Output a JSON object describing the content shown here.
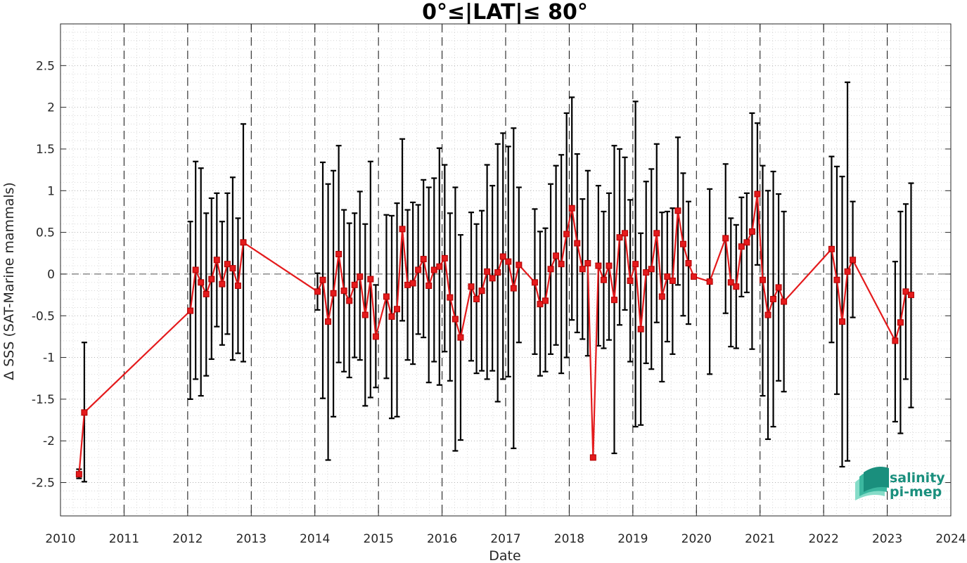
{
  "chart_data": {
    "type": "line",
    "title": "0°≤|LAT|≤ 80°",
    "xlabel": "Date",
    "ylabel": "Δ SSS (SAT-Marine mammals)",
    "xlim": [
      2010,
      2024
    ],
    "ylim": [
      -2.9,
      3.0
    ],
    "x_ticks": [
      "2010",
      "2011",
      "2012",
      "2013",
      "2014",
      "2015",
      "2016",
      "2017",
      "2018",
      "2019",
      "2020",
      "2021",
      "2022",
      "2023",
      "2024"
    ],
    "y_ticks": [
      "-2.5",
      "-2",
      "-1.5",
      "-1",
      "-0.5",
      "0",
      "0.5",
      "1",
      "1.5",
      "2",
      "2.5"
    ],
    "grid": "minor dotted",
    "reference_line_y": 0,
    "series": [
      {
        "color": "#e41a1c",
        "marker": "square",
        "errorbar_color": "#000000",
        "points": [
          {
            "x": "2010-04",
            "y": -2.4,
            "low": -2.45,
            "high": -2.34
          },
          {
            "x": "2010-05",
            "y": -1.66,
            "low": -2.49,
            "high": -0.82
          },
          {
            "x": "2012-01",
            "y": -0.44,
            "low": -1.5,
            "high": 0.63
          },
          {
            "x": "2012-02",
            "y": 0.05,
            "low": -1.26,
            "high": 1.35
          },
          {
            "x": "2012-03",
            "y": -0.1,
            "low": -1.46,
            "high": 1.27
          },
          {
            "x": "2012-04",
            "y": -0.24,
            "low": -1.22,
            "high": 0.73
          },
          {
            "x": "2012-05",
            "y": -0.06,
            "low": -1.02,
            "high": 0.91
          },
          {
            "x": "2012-06",
            "y": 0.17,
            "low": -0.63,
            "high": 0.97
          },
          {
            "x": "2012-07",
            "y": -0.12,
            "low": -0.85,
            "high": 0.63
          },
          {
            "x": "2012-08",
            "y": 0.12,
            "low": -0.72,
            "high": 0.97
          },
          {
            "x": "2012-09",
            "y": 0.07,
            "low": -1.03,
            "high": 1.16
          },
          {
            "x": "2012-10",
            "y": -0.14,
            "low": -0.95,
            "high": 0.67
          },
          {
            "x": "2012-11",
            "y": 0.38,
            "low": -1.05,
            "high": 1.8
          },
          {
            "x": "2014-01",
            "y": -0.21,
            "low": -0.43,
            "high": 0.01
          },
          {
            "x": "2014-02",
            "y": -0.07,
            "low": -1.49,
            "high": 1.34
          },
          {
            "x": "2014-03",
            "y": -0.57,
            "low": -2.23,
            "high": 1.08
          },
          {
            "x": "2014-04",
            "y": -0.23,
            "low": -1.71,
            "high": 1.24
          },
          {
            "x": "2014-05",
            "y": 0.24,
            "low": -1.06,
            "high": 1.54
          },
          {
            "x": "2014-06",
            "y": -0.2,
            "low": -1.17,
            "high": 0.77
          },
          {
            "x": "2014-07",
            "y": -0.32,
            "low": -1.24,
            "high": 0.61
          },
          {
            "x": "2014-08",
            "y": -0.13,
            "low": -1.0,
            "high": 0.73
          },
          {
            "x": "2014-09",
            "y": -0.03,
            "low": -1.03,
            "high": 0.99
          },
          {
            "x": "2014-10",
            "y": -0.49,
            "low": -1.58,
            "high": 0.6
          },
          {
            "x": "2014-11",
            "y": -0.06,
            "low": -1.48,
            "high": 1.35
          },
          {
            "x": "2014-12",
            "y": -0.75,
            "low": -1.36,
            "high": -0.13
          },
          {
            "x": "2015-02",
            "y": -0.27,
            "low": -1.25,
            "high": 0.71
          },
          {
            "x": "2015-03",
            "y": -0.51,
            "low": -1.73,
            "high": 0.7
          },
          {
            "x": "2015-04",
            "y": -0.42,
            "low": -1.71,
            "high": 0.85
          },
          {
            "x": "2015-05",
            "y": 0.54,
            "low": -0.56,
            "high": 1.62
          },
          {
            "x": "2015-06",
            "y": -0.13,
            "low": -1.03,
            "high": 0.77
          },
          {
            "x": "2015-07",
            "y": -0.11,
            "low": -1.08,
            "high": 0.86
          },
          {
            "x": "2015-08",
            "y": 0.05,
            "low": -0.72,
            "high": 0.83
          },
          {
            "x": "2015-09",
            "y": 0.18,
            "low": -0.76,
            "high": 1.13
          },
          {
            "x": "2015-10",
            "y": -0.14,
            "low": -1.3,
            "high": 1.04
          },
          {
            "x": "2015-11",
            "y": 0.05,
            "low": -1.05,
            "high": 1.15
          },
          {
            "x": "2015-12",
            "y": 0.09,
            "low": -1.33,
            "high": 1.51
          },
          {
            "x": "2016-01",
            "y": 0.19,
            "low": -0.93,
            "high": 1.31
          },
          {
            "x": "2016-02",
            "y": -0.28,
            "low": -1.28,
            "high": 0.73
          },
          {
            "x": "2016-03",
            "y": -0.54,
            "low": -2.12,
            "high": 1.04
          },
          {
            "x": "2016-04",
            "y": -0.76,
            "low": -1.99,
            "high": 0.47
          },
          {
            "x": "2016-06",
            "y": -0.15,
            "low": -1.04,
            "high": 0.74
          },
          {
            "x": "2016-07",
            "y": -0.3,
            "low": -1.19,
            "high": 0.6
          },
          {
            "x": "2016-08",
            "y": -0.2,
            "low": -1.16,
            "high": 0.76
          },
          {
            "x": "2016-09",
            "y": 0.03,
            "low": -1.26,
            "high": 1.31
          },
          {
            "x": "2016-10",
            "y": -0.05,
            "low": -1.16,
            "high": 1.06
          },
          {
            "x": "2016-11",
            "y": 0.02,
            "low": -1.53,
            "high": 1.56
          },
          {
            "x": "2016-12",
            "y": 0.21,
            "low": -1.26,
            "high": 1.69
          },
          {
            "x": "2017-01",
            "y": 0.15,
            "low": -1.23,
            "high": 1.53
          },
          {
            "x": "2017-02",
            "y": -0.17,
            "low": -2.09,
            "high": 1.75
          },
          {
            "x": "2017-03",
            "y": 0.11,
            "low": -0.82,
            "high": 1.04
          },
          {
            "x": "2017-06",
            "y": -0.1,
            "low": -0.96,
            "high": 0.78
          },
          {
            "x": "2017-07",
            "y": -0.36,
            "low": -1.22,
            "high": 0.51
          },
          {
            "x": "2017-08",
            "y": -0.32,
            "low": -1.17,
            "high": 0.55
          },
          {
            "x": "2017-09",
            "y": 0.06,
            "low": -0.96,
            "high": 1.08
          },
          {
            "x": "2017-10",
            "y": 0.22,
            "low": -0.85,
            "high": 1.3
          },
          {
            "x": "2017-11",
            "y": 0.12,
            "low": -1.19,
            "high": 1.43
          },
          {
            "x": "2017-12",
            "y": 0.48,
            "low": -1.0,
            "high": 1.93
          },
          {
            "x": "2018-01",
            "y": 0.79,
            "low": -0.55,
            "high": 2.12
          },
          {
            "x": "2018-02",
            "y": 0.37,
            "low": -0.7,
            "high": 1.44
          },
          {
            "x": "2018-03",
            "y": 0.06,
            "low": -0.78,
            "high": 0.9
          },
          {
            "x": "2018-04",
            "y": 0.13,
            "low": -0.98,
            "high": 1.24
          },
          {
            "x": "2018-05",
            "y": -2.2,
            "low": -2.2,
            "high": -2.2
          },
          {
            "x": "2018-06",
            "y": 0.1,
            "low": -0.86,
            "high": 1.06
          },
          {
            "x": "2018-07",
            "y": -0.07,
            "low": -0.89,
            "high": 0.75
          },
          {
            "x": "2018-08",
            "y": 0.1,
            "low": -0.79,
            "high": 0.97
          },
          {
            "x": "2018-09",
            "y": -0.31,
            "low": -2.15,
            "high": 1.54
          },
          {
            "x": "2018-10",
            "y": 0.44,
            "low": -0.61,
            "high": 1.5
          },
          {
            "x": "2018-11",
            "y": 0.49,
            "low": -0.43,
            "high": 1.4
          },
          {
            "x": "2018-12",
            "y": -0.08,
            "low": -1.05,
            "high": 0.89
          },
          {
            "x": "2019-01",
            "y": 0.12,
            "low": -1.83,
            "high": 2.07
          },
          {
            "x": "2019-02",
            "y": -0.66,
            "low": -1.81,
            "high": 0.49
          },
          {
            "x": "2019-03",
            "y": 0.02,
            "low": -1.07,
            "high": 1.11
          },
          {
            "x": "2019-04",
            "y": 0.06,
            "low": -1.14,
            "high": 1.26
          },
          {
            "x": "2019-05",
            "y": 0.49,
            "low": -0.58,
            "high": 1.56
          },
          {
            "x": "2019-06",
            "y": -0.27,
            "low": -1.29,
            "high": 0.74
          },
          {
            "x": "2019-07",
            "y": -0.03,
            "low": -0.81,
            "high": 0.75
          },
          {
            "x": "2019-08",
            "y": -0.08,
            "low": -0.96,
            "high": 0.79
          },
          {
            "x": "2019-09",
            "y": 0.76,
            "low": -0.13,
            "high": 1.64
          },
          {
            "x": "2019-10",
            "y": 0.36,
            "low": -0.5,
            "high": 1.21
          },
          {
            "x": "2019-11",
            "y": 0.13,
            "low": -0.6,
            "high": 0.87
          },
          {
            "x": "2019-12",
            "y": -0.03,
            "low": -0.04,
            "high": -0.02
          },
          {
            "x": "2020-03",
            "y": -0.09,
            "low": -1.2,
            "high": 1.02
          },
          {
            "x": "2020-06",
            "y": 0.43,
            "low": -0.47,
            "high": 1.32
          },
          {
            "x": "2020-07",
            "y": -0.1,
            "low": -0.87,
            "high": 0.67
          },
          {
            "x": "2020-08",
            "y": -0.15,
            "low": -0.89,
            "high": 0.59
          },
          {
            "x": "2020-09",
            "y": 0.33,
            "low": -0.27,
            "high": 0.92
          },
          {
            "x": "2020-10",
            "y": 0.38,
            "low": -0.22,
            "high": 0.97
          },
          {
            "x": "2020-11",
            "y": 0.51,
            "low": -0.9,
            "high": 1.93
          },
          {
            "x": "2020-12",
            "y": 0.96,
            "low": 0.11,
            "high": 1.81
          },
          {
            "x": "2021-01",
            "y": -0.07,
            "low": -1.46,
            "high": 1.3
          },
          {
            "x": "2021-02",
            "y": -0.49,
            "low": -1.98,
            "high": 1.0
          },
          {
            "x": "2021-03",
            "y": -0.3,
            "low": -1.83,
            "high": 1.23
          },
          {
            "x": "2021-04",
            "y": -0.16,
            "low": -1.28,
            "high": 0.96
          },
          {
            "x": "2021-05",
            "y": -0.33,
            "low": -1.41,
            "high": 0.75
          },
          {
            "x": "2022-02",
            "y": 0.3,
            "low": -0.82,
            "high": 1.41
          },
          {
            "x": "2022-03",
            "y": -0.07,
            "low": -1.44,
            "high": 1.29
          },
          {
            "x": "2022-04",
            "y": -0.57,
            "low": -2.31,
            "high": 1.17
          },
          {
            "x": "2022-05",
            "y": 0.03,
            "low": -2.24,
            "high": 2.3
          },
          {
            "x": "2022-06",
            "y": 0.17,
            "low": -0.52,
            "high": 0.87
          },
          {
            "x": "2023-02",
            "y": -0.8,
            "low": -1.77,
            "high": 0.15
          },
          {
            "x": "2023-03",
            "y": -0.58,
            "low": -1.91,
            "high": 0.75
          },
          {
            "x": "2023-04",
            "y": -0.21,
            "low": -1.26,
            "high": 0.84
          },
          {
            "x": "2023-05",
            "y": -0.25,
            "low": -1.6,
            "high": 1.09
          }
        ]
      }
    ]
  },
  "logo": {
    "line1": "salinity",
    "line2": "pi-mep",
    "color": "#1a8f7d"
  }
}
